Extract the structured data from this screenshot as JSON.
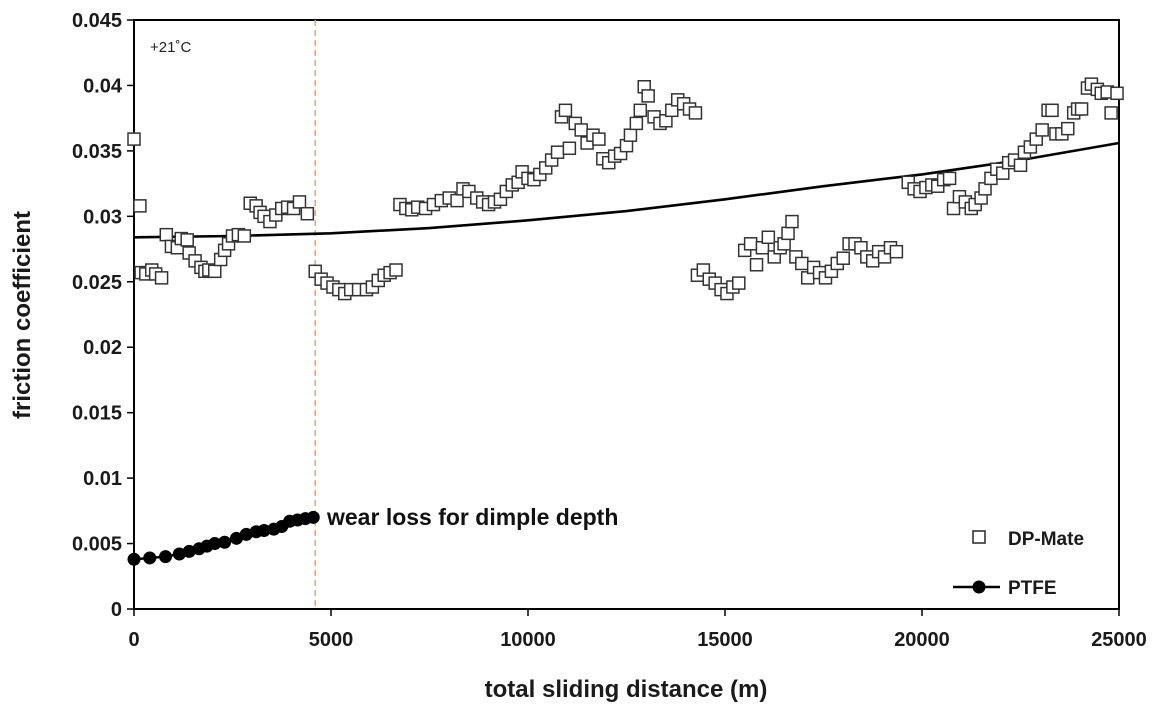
{
  "chart_data": {
    "type": "scatter",
    "xlabel": "total sliding distance (m)",
    "ylabel": "friction coefficient",
    "xlim": [
      0,
      25000
    ],
    "ylim": [
      0,
      0.045
    ],
    "x_ticks": [
      0,
      5000,
      10000,
      15000,
      20000,
      25000
    ],
    "y_ticks": [
      0,
      0.005,
      0.01,
      0.015,
      0.02,
      0.025,
      0.03,
      0.035,
      0.04,
      0.045
    ],
    "x_tick_labels": [
      "0",
      "5000",
      "10000",
      "15000",
      "20000",
      "25000"
    ],
    "y_tick_labels": [
      "0",
      "0.005",
      "0.01",
      "0.015",
      "0.02",
      "0.025",
      "0.03",
      "0.035",
      "0.04",
      "0.045"
    ],
    "grid": false,
    "legend_position": "bottom-right",
    "annotations": {
      "temperature": "+21˚C",
      "wear_label": "wear loss for dimple depth",
      "wear_line_x": 4600
    },
    "trend_line": {
      "x": [
        0,
        2500,
        5000,
        7500,
        10000,
        12500,
        15000,
        17500,
        20000,
        22500,
        25000
      ],
      "y": [
        0.0284,
        0.0285,
        0.0287,
        0.0291,
        0.0297,
        0.0304,
        0.0313,
        0.0323,
        0.0332,
        0.0343,
        0.0356
      ]
    },
    "series": [
      {
        "name": "DP-Mate",
        "marker": "open-square",
        "color": "#333333",
        "points": [
          [
            0,
            0.0359
          ],
          [
            150,
            0.0308
          ],
          [
            180,
            0.0257
          ],
          [
            300,
            0.0256
          ],
          [
            450,
            0.0259
          ],
          [
            550,
            0.0256
          ],
          [
            700,
            0.0253
          ],
          [
            820,
            0.0286
          ],
          [
            950,
            0.0277
          ],
          [
            1100,
            0.0276
          ],
          [
            1200,
            0.0283
          ],
          [
            1350,
            0.0282
          ],
          [
            1400,
            0.0272
          ],
          [
            1550,
            0.0266
          ],
          [
            1700,
            0.0261
          ],
          [
            1800,
            0.0258
          ],
          [
            1900,
            0.0259
          ],
          [
            2050,
            0.0258
          ],
          [
            2200,
            0.0267
          ],
          [
            2300,
            0.0274
          ],
          [
            2400,
            0.0279
          ],
          [
            2500,
            0.0285
          ],
          [
            2650,
            0.0286
          ],
          [
            2800,
            0.0285
          ],
          [
            2950,
            0.031
          ],
          [
            3100,
            0.0308
          ],
          [
            3200,
            0.0303
          ],
          [
            3300,
            0.03
          ],
          [
            3450,
            0.0296
          ],
          [
            3600,
            0.0301
          ],
          [
            3750,
            0.0306
          ],
          [
            3900,
            0.0307
          ],
          [
            4050,
            0.0306
          ],
          [
            4200,
            0.0311
          ],
          [
            4400,
            0.0302
          ],
          [
            4600,
            0.0258
          ],
          [
            4750,
            0.0252
          ],
          [
            4900,
            0.0249
          ],
          [
            5050,
            0.0246
          ],
          [
            5200,
            0.0244
          ],
          [
            5350,
            0.0241
          ],
          [
            5500,
            0.0244
          ],
          [
            5700,
            0.0244
          ],
          [
            5900,
            0.0244
          ],
          [
            6050,
            0.0246
          ],
          [
            6200,
            0.0251
          ],
          [
            6350,
            0.0255
          ],
          [
            6500,
            0.0257
          ],
          [
            6650,
            0.0259
          ],
          [
            6750,
            0.0309
          ],
          [
            6900,
            0.0306
          ],
          [
            7050,
            0.0305
          ],
          [
            7200,
            0.0307
          ],
          [
            7400,
            0.0306
          ],
          [
            7600,
            0.0309
          ],
          [
            7800,
            0.0312
          ],
          [
            8000,
            0.0314
          ],
          [
            8200,
            0.0312
          ],
          [
            8350,
            0.0321
          ],
          [
            8500,
            0.0319
          ],
          [
            8700,
            0.0314
          ],
          [
            8850,
            0.0311
          ],
          [
            9000,
            0.0309
          ],
          [
            9150,
            0.0311
          ],
          [
            9300,
            0.0313
          ],
          [
            9450,
            0.0319
          ],
          [
            9600,
            0.0324
          ],
          [
            9750,
            0.0326
          ],
          [
            9850,
            0.0334
          ],
          [
            10000,
            0.0329
          ],
          [
            10150,
            0.0328
          ],
          [
            10300,
            0.0332
          ],
          [
            10450,
            0.0337
          ],
          [
            10600,
            0.0343
          ],
          [
            10750,
            0.0349
          ],
          [
            10850,
            0.0376
          ],
          [
            10950,
            0.0381
          ],
          [
            11050,
            0.0352
          ],
          [
            11200,
            0.0371
          ],
          [
            11350,
            0.0366
          ],
          [
            11500,
            0.0356
          ],
          [
            11650,
            0.0362
          ],
          [
            11800,
            0.0359
          ],
          [
            11900,
            0.0344
          ],
          [
            12050,
            0.0341
          ],
          [
            12200,
            0.0346
          ],
          [
            12350,
            0.0348
          ],
          [
            12500,
            0.0354
          ],
          [
            12600,
            0.0362
          ],
          [
            12750,
            0.0371
          ],
          [
            12850,
            0.0381
          ],
          [
            12950,
            0.0399
          ],
          [
            13050,
            0.0392
          ],
          [
            13200,
            0.0376
          ],
          [
            13350,
            0.0371
          ],
          [
            13500,
            0.0373
          ],
          [
            13650,
            0.0381
          ],
          [
            13800,
            0.0389
          ],
          [
            13950,
            0.0386
          ],
          [
            14100,
            0.0382
          ],
          [
            14250,
            0.0379
          ],
          [
            14300,
            0.0255
          ],
          [
            14450,
            0.0259
          ],
          [
            14600,
            0.0252
          ],
          [
            14750,
            0.0249
          ],
          [
            14900,
            0.0244
          ],
          [
            15050,
            0.0241
          ],
          [
            15200,
            0.0246
          ],
          [
            15350,
            0.0249
          ],
          [
            15500,
            0.0274
          ],
          [
            15650,
            0.0279
          ],
          [
            15800,
            0.0263
          ],
          [
            15950,
            0.0276
          ],
          [
            16100,
            0.0284
          ],
          [
            16250,
            0.0269
          ],
          [
            16400,
            0.0276
          ],
          [
            16500,
            0.0279
          ],
          [
            16600,
            0.0287
          ],
          [
            16700,
            0.0296
          ],
          [
            16800,
            0.0269
          ],
          [
            16950,
            0.0264
          ],
          [
            17100,
            0.0253
          ],
          [
            17250,
            0.0261
          ],
          [
            17400,
            0.0257
          ],
          [
            17550,
            0.0253
          ],
          [
            17700,
            0.0258
          ],
          [
            17850,
            0.0264
          ],
          [
            18000,
            0.0268
          ],
          [
            18150,
            0.0279
          ],
          [
            18300,
            0.0279
          ],
          [
            18450,
            0.0276
          ],
          [
            18600,
            0.0269
          ],
          [
            18750,
            0.0266
          ],
          [
            18900,
            0.0273
          ],
          [
            19050,
            0.0269
          ],
          [
            19200,
            0.0276
          ],
          [
            19350,
            0.0273
          ],
          [
            19650,
            0.0326
          ],
          [
            19800,
            0.0321
          ],
          [
            19950,
            0.0319
          ],
          [
            20100,
            0.0322
          ],
          [
            20250,
            0.0324
          ],
          [
            20400,
            0.0323
          ],
          [
            20550,
            0.0328
          ],
          [
            20700,
            0.0329
          ],
          [
            20800,
            0.0306
          ],
          [
            20950,
            0.0315
          ],
          [
            21100,
            0.0311
          ],
          [
            21250,
            0.0306
          ],
          [
            21350,
            0.0309
          ],
          [
            21500,
            0.0314
          ],
          [
            21600,
            0.0321
          ],
          [
            21750,
            0.0329
          ],
          [
            21900,
            0.0336
          ],
          [
            22050,
            0.0333
          ],
          [
            22200,
            0.0341
          ],
          [
            22350,
            0.0343
          ],
          [
            22500,
            0.0339
          ],
          [
            22600,
            0.0349
          ],
          [
            22750,
            0.0353
          ],
          [
            22900,
            0.0359
          ],
          [
            23050,
            0.0366
          ],
          [
            23200,
            0.0381
          ],
          [
            23300,
            0.0381
          ],
          [
            23400,
            0.0363
          ],
          [
            23550,
            0.0363
          ],
          [
            23700,
            0.0367
          ],
          [
            23850,
            0.0379
          ],
          [
            23950,
            0.0382
          ],
          [
            24050,
            0.0382
          ],
          [
            24200,
            0.0398
          ],
          [
            24300,
            0.0401
          ],
          [
            24450,
            0.0397
          ],
          [
            24550,
            0.0394
          ],
          [
            24700,
            0.0395
          ],
          [
            24800,
            0.0379
          ],
          [
            24950,
            0.0394
          ]
        ]
      },
      {
        "name": "PTFE",
        "marker": "filled-circle-line",
        "color": "#000000",
        "points": [
          [
            0,
            0.0038
          ],
          [
            400,
            0.0039
          ],
          [
            800,
            0.004
          ],
          [
            1150,
            0.0042
          ],
          [
            1400,
            0.0044
          ],
          [
            1650,
            0.0046
          ],
          [
            1850,
            0.0048
          ],
          [
            2050,
            0.005
          ],
          [
            2300,
            0.0051
          ],
          [
            2600,
            0.0054
          ],
          [
            2850,
            0.0057
          ],
          [
            3100,
            0.0059
          ],
          [
            3300,
            0.006
          ],
          [
            3550,
            0.0061
          ],
          [
            3750,
            0.0063
          ],
          [
            3950,
            0.0067
          ],
          [
            4150,
            0.0068
          ],
          [
            4350,
            0.0069
          ],
          [
            4550,
            0.007
          ]
        ]
      }
    ]
  }
}
